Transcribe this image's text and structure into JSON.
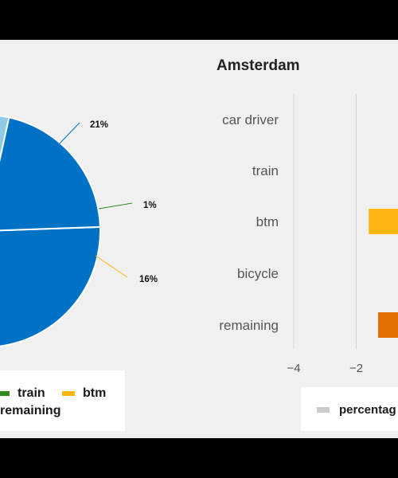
{
  "chart_data": [
    {
      "type": "pie",
      "slices": [
        {
          "name": "car driver",
          "value": 44,
          "color": "#0072c6",
          "label": null
        },
        {
          "name": "train",
          "value": 1,
          "color": "#2e8b1e",
          "label": "1%"
        },
        {
          "name": "btm",
          "value": 16,
          "color": "#ffb612",
          "label": "16%"
        },
        {
          "name": "bicycle",
          "value": 18,
          "color": "#8fcae7",
          "label": null
        },
        {
          "name": "remaining",
          "value": 21,
          "color": "#0072c6",
          "label": "21%"
        }
      ],
      "visible_labels": [
        "21%",
        "1%",
        "16%"
      ],
      "legend": [
        {
          "label": "train",
          "color": "#2e8b1e"
        },
        {
          "label": "btm",
          "color": "#ffb612"
        },
        {
          "label": "remaining",
          "color": "#e17000"
        }
      ]
    },
    {
      "type": "bar",
      "orientation": "horizontal",
      "title": "Amsterdam",
      "categories": [
        "car driver",
        "train",
        "btm",
        "bicycle",
        "remaining"
      ],
      "series": [
        {
          "name": "percentage",
          "values": [
            0,
            0,
            -1.6,
            0,
            -1.3
          ],
          "colors": [
            "#cccccc",
            "#cccccc",
            "#ffb612",
            "#cccccc",
            "#e17000"
          ]
        }
      ],
      "xticks": [
        -4,
        -2
      ],
      "xlim": [
        -4,
        2.7
      ],
      "legend": [
        {
          "label": "percentag",
          "color": "#cccccc"
        }
      ]
    }
  ]
}
